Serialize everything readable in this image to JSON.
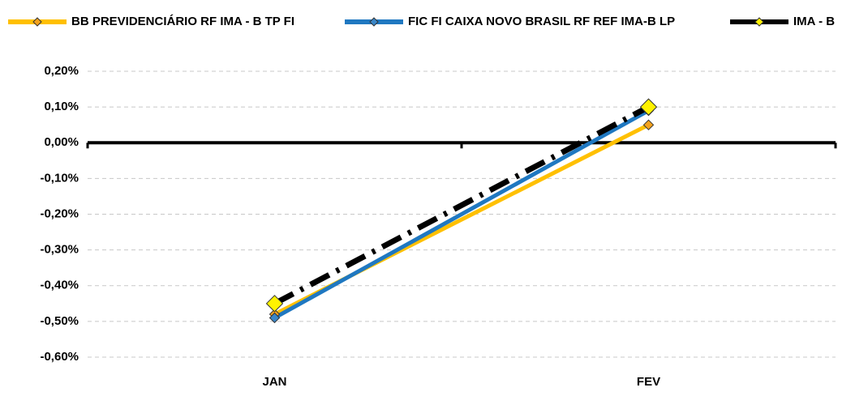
{
  "chart_data": {
    "type": "line",
    "categories": [
      "JAN",
      "FEV"
    ],
    "series": [
      {
        "name": "BB PREVIDENCIÁRIO RF IMA - B TP FI",
        "color": "#FFC000",
        "marker_color": "#F4A21C",
        "line_style": "solid",
        "values": [
          -0.48,
          0.05
        ]
      },
      {
        "name": "FIC FI CAIXA NOVO BRASIL RF REF IMA-B LP",
        "color": "#1F78C1",
        "marker_color": "#3A86C8",
        "line_style": "solid",
        "values": [
          -0.49,
          0.09
        ]
      },
      {
        "name": "IMA - B",
        "color": "#000000",
        "marker_color": "#FFF200",
        "line_style": "dash-dot",
        "values": [
          -0.45,
          0.1
        ]
      }
    ],
    "ylim": [
      -0.6,
      0.2
    ],
    "yticks": [
      {
        "value": -0.6,
        "label": "-0,60%"
      },
      {
        "value": -0.5,
        "label": "-0,50%"
      },
      {
        "value": -0.4,
        "label": "-0,40%"
      },
      {
        "value": -0.3,
        "label": "-0,30%"
      },
      {
        "value": -0.2,
        "label": "-0,20%"
      },
      {
        "value": -0.1,
        "label": "-0,10%"
      },
      {
        "value": 0,
        "label": "0,00%"
      },
      {
        "value": 0.1,
        "label": "0,10%"
      },
      {
        "value": 0.2,
        "label": "0,20%"
      }
    ],
    "grid": true,
    "legend": "top"
  }
}
